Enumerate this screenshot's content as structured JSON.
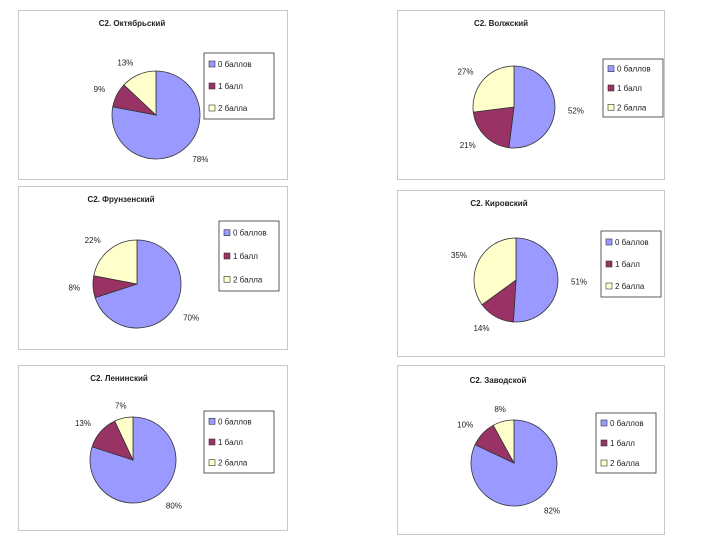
{
  "colors": {
    "zero_points": "#9999ff",
    "one_point": "#993366",
    "two_points": "#ffffcc"
  },
  "legend": [
    "0 баллов",
    "1 балл",
    "2 балла"
  ],
  "chart_data": [
    {
      "type": "pie",
      "title": "С2. Октябрьский",
      "categories": [
        "0 баллов",
        "1 балл",
        "2 балла"
      ],
      "values": [
        78,
        9,
        13
      ],
      "labels": [
        "78%",
        "9%",
        "13%"
      ],
      "legend_position": "right"
    },
    {
      "type": "pie",
      "title": "С2. Волжский",
      "categories": [
        "0 баллов",
        "1 балл",
        "2 балла"
      ],
      "values": [
        52,
        21,
        27
      ],
      "labels": [
        "52%",
        "21%",
        "27%"
      ],
      "legend_position": "right"
    },
    {
      "type": "pie",
      "title": "С2. Фрунзенский",
      "categories": [
        "0 баллов",
        "1 балл",
        "2 балла"
      ],
      "values": [
        70,
        8,
        22
      ],
      "labels": [
        "70%",
        "8%",
        "22%"
      ],
      "legend_position": "right"
    },
    {
      "type": "pie",
      "title": "С2. Кировский",
      "categories": [
        "0 баллов",
        "1 балл",
        "2 балла"
      ],
      "values": [
        51,
        14,
        35
      ],
      "labels": [
        "51%",
        "14%",
        "35%"
      ],
      "legend_position": "right"
    },
    {
      "type": "pie",
      "title": "С2. Ленинский",
      "categories": [
        "0 баллов",
        "1 балл",
        "2 балла"
      ],
      "values": [
        80,
        13,
        7
      ],
      "labels": [
        "80%",
        "13%",
        "7%"
      ],
      "legend_position": "right"
    },
    {
      "type": "pie",
      "title": "С2. Заводской",
      "categories": [
        "0 баллов",
        "1 балл",
        "2 балла"
      ],
      "values": [
        82,
        10,
        8
      ],
      "labels": [
        "82%",
        "10%",
        "8%"
      ],
      "legend_position": "right"
    }
  ]
}
